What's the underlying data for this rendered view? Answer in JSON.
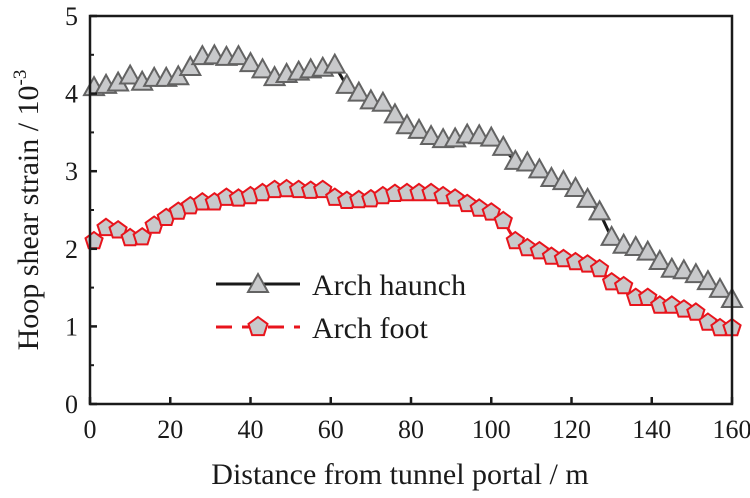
{
  "chart_data": {
    "type": "line",
    "title": "",
    "xlabel": "Distance from tunnel portal / m",
    "ylabel": "Hoop shear strain / 10",
    "ylabel_exponent": "-3",
    "xlim": [
      0,
      160
    ],
    "ylim": [
      0,
      5
    ],
    "xticks": [
      "0",
      "20",
      "40",
      "60",
      "80",
      "100",
      "120",
      "140",
      "160"
    ],
    "yticks": [
      "0",
      "1",
      "2",
      "3",
      "4",
      "5"
    ],
    "grid": false,
    "legend_position": "center-left",
    "x": [
      1,
      4,
      7,
      10,
      13,
      16,
      19,
      22,
      25,
      28,
      31,
      34,
      37,
      40,
      43,
      46,
      49,
      52,
      55,
      58,
      61,
      64,
      67,
      70,
      73,
      76,
      79,
      82,
      85,
      88,
      91,
      94,
      97,
      100,
      103,
      106,
      109,
      112,
      115,
      118,
      121,
      124,
      127,
      130,
      133,
      136,
      139,
      142,
      145,
      148,
      151,
      154,
      157,
      160
    ],
    "series": [
      {
        "name": "Arch haunch",
        "line_color": "#1a1a1a",
        "marker": "triangle",
        "values": [
          4.07,
          4.1,
          4.13,
          4.22,
          4.14,
          4.19,
          4.19,
          4.21,
          4.33,
          4.47,
          4.48,
          4.46,
          4.47,
          4.38,
          4.3,
          4.2,
          4.24,
          4.27,
          4.3,
          4.32,
          4.36,
          4.1,
          4.0,
          3.9,
          3.87,
          3.72,
          3.58,
          3.52,
          3.44,
          3.4,
          3.41,
          3.46,
          3.45,
          3.42,
          3.3,
          3.12,
          3.1,
          3.01,
          2.9,
          2.86,
          2.77,
          2.63,
          2.47,
          2.14,
          2.04,
          2.01,
          1.95,
          1.83,
          1.73,
          1.71,
          1.66,
          1.57,
          1.47,
          1.34
        ]
      },
      {
        "name": "Arch foot",
        "line_color": "#e8141c",
        "marker": "pentagon",
        "values": [
          2.1,
          2.27,
          2.24,
          2.14,
          2.15,
          2.3,
          2.4,
          2.48,
          2.55,
          2.6,
          2.6,
          2.66,
          2.65,
          2.68,
          2.72,
          2.76,
          2.77,
          2.76,
          2.75,
          2.76,
          2.66,
          2.62,
          2.63,
          2.64,
          2.68,
          2.71,
          2.72,
          2.72,
          2.72,
          2.68,
          2.65,
          2.58,
          2.52,
          2.47,
          2.36,
          2.1,
          2.01,
          1.97,
          1.9,
          1.87,
          1.83,
          1.8,
          1.74,
          1.57,
          1.52,
          1.37,
          1.37,
          1.27,
          1.27,
          1.22,
          1.18,
          1.05,
          0.98,
          0.98
        ]
      }
    ]
  },
  "colors": {
    "marker_fill": "#c8c9cb",
    "triangle_stroke": "#636363",
    "pentagon_stroke": "#e8141c"
  }
}
